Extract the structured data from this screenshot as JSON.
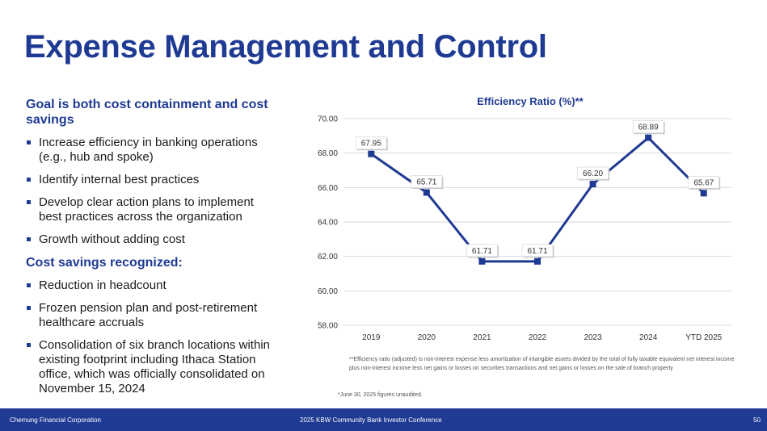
{
  "slide": {
    "title": "Expense Management and Control"
  },
  "left_panel": {
    "goal_heading": "Goal is both cost containment and cost savings",
    "goal_bullets": [
      "Increase efficiency in banking operations (e.g., hub and spoke)",
      "Identify internal best practices",
      "Develop clear action plans to implement best practices across the organization",
      "Growth without adding cost"
    ],
    "savings_heading": "Cost savings recognized:",
    "savings_bullets": [
      "Reduction in headcount",
      "Frozen pension plan and post-retirement healthcare accruals",
      "Consolidation of six branch locations within existing footprint including Ithaca Station office, which was officially consolidated on November 15, 2024"
    ]
  },
  "chart_data": {
    "type": "line",
    "title": "Efficiency Ratio (%)**",
    "categories": [
      "2019",
      "2020",
      "2021",
      "2022",
      "2023",
      "2024",
      "YTD 2025"
    ],
    "series": [
      {
        "name": "Efficiency Ratio",
        "values": [
          67.95,
          65.71,
          61.71,
          61.71,
          66.2,
          68.89,
          65.67
        ]
      }
    ],
    "data_labels": [
      "67.95",
      "65.71",
      "61.71",
      "61.71",
      "66.20",
      "68.89",
      "65.67"
    ],
    "y_ticks": [
      "58.00",
      "60.00",
      "62.00",
      "64.00",
      "66.00",
      "68.00",
      "70.00"
    ],
    "ylim": [
      58,
      70
    ],
    "grid": true,
    "line_color": "#1f3a93",
    "xlabel": "",
    "ylabel": ""
  },
  "footnotes": {
    "efficiency_note": "**Efficiency ratio (adjusted) is non-interest expense less amortization of intangible assets divided by the total of fully taxable equivalent net interest income plus non-interest income less net gains or losses on securities transactions and net gains or losses on the sale of branch property",
    "unaudited_note": "*June 30, 2025 figures unaudited."
  },
  "footer": {
    "company": "Chemung Financial Corporation",
    "event": "2025 KBW Community Bank Investor Conference",
    "page": "50"
  },
  "colors": {
    "brand_blue": "#1f3a93",
    "grid": "#d9d9d9"
  }
}
